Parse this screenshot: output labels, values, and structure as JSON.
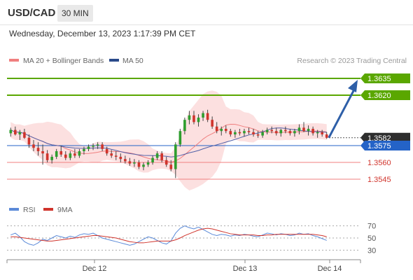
{
  "header": {
    "symbol": "USD/CAD",
    "timeframe": "30 MIN",
    "datetime": "Wednesday, December 13, 2023 1:17:39 PM CET"
  },
  "legend": {
    "ma20_label": "MA 20 + Bollinger Bands",
    "ma50_label": "MA 50",
    "credit": "Research © 2023 Trading Central",
    "rsi_label": "RSI",
    "rsi_ma_label": "9MA"
  },
  "colors": {
    "green_level": "#5aa700",
    "blue_level": "#2463c7",
    "red_level": "#f07f7f",
    "bullish_candle": "#2e9e2e",
    "bearish_candle": "#d0342c",
    "bollinger_band": "#fbd5d5",
    "ma20": "#f07f7f",
    "ma50": "#5060a8",
    "rsi_line": "#5b8ad8",
    "rsi_ma": "#d0342c",
    "forecast_arrow": "#2e5fa8",
    "last_price_tag": "#2e2e2e"
  },
  "chart_data": [
    {
      "type": "candlestick",
      "title": "",
      "x_ticks": [
        "Dec 12",
        "Dec 13",
        "Dec 14"
      ],
      "ylim": [
        1.3535,
        1.3645
      ],
      "levels": [
        {
          "value": 1.3635,
          "label": "1.3635",
          "kind": "resistance"
        },
        {
          "value": 1.362,
          "label": "1.3620",
          "kind": "resistance"
        },
        {
          "value": 1.3582,
          "label": "1.3582",
          "kind": "last_price"
        },
        {
          "value": 1.3575,
          "label": "1.3575",
          "kind": "pivot"
        },
        {
          "value": 1.356,
          "label": "1.3560",
          "kind": "support"
        },
        {
          "value": 1.3545,
          "label": "1.3545",
          "kind": "support"
        }
      ],
      "forecast": {
        "from": 1.3582,
        "to": 1.3635,
        "direction": "up"
      },
      "candles": [
        [
          1.3586,
          1.3591,
          1.3583,
          1.3589
        ],
        [
          1.3589,
          1.3592,
          1.3584,
          1.3585
        ],
        [
          1.3585,
          1.3589,
          1.358,
          1.3587
        ],
        [
          1.3587,
          1.359,
          1.3581,
          1.3582
        ],
        [
          1.3582,
          1.3585,
          1.3573,
          1.3576
        ],
        [
          1.3576,
          1.358,
          1.357,
          1.3573
        ],
        [
          1.3573,
          1.3578,
          1.3566,
          1.357
        ],
        [
          1.357,
          1.3576,
          1.3558,
          1.3568
        ],
        [
          1.3568,
          1.3571,
          1.356,
          1.3562
        ],
        [
          1.3562,
          1.3567,
          1.3559,
          1.3565
        ],
        [
          1.3565,
          1.3572,
          1.3563,
          1.357
        ],
        [
          1.357,
          1.3575,
          1.3565,
          1.3567
        ],
        [
          1.3567,
          1.357,
          1.3562,
          1.3564
        ],
        [
          1.3564,
          1.357,
          1.3562,
          1.3568
        ],
        [
          1.3568,
          1.3572,
          1.3564,
          1.3566
        ],
        [
          1.3566,
          1.3572,
          1.3564,
          1.357
        ],
        [
          1.357,
          1.3574,
          1.3567,
          1.3572
        ],
        [
          1.3572,
          1.3576,
          1.357,
          1.3574
        ],
        [
          1.3574,
          1.3577,
          1.3571,
          1.3575
        ],
        [
          1.3575,
          1.3578,
          1.3572,
          1.3576
        ],
        [
          1.3576,
          1.3578,
          1.357,
          1.3572
        ],
        [
          1.3572,
          1.3574,
          1.3566,
          1.3568
        ],
        [
          1.3568,
          1.3571,
          1.3564,
          1.3566
        ],
        [
          1.3566,
          1.357,
          1.3562,
          1.3565
        ],
        [
          1.3565,
          1.3568,
          1.356,
          1.3563
        ],
        [
          1.3563,
          1.3566,
          1.3559,
          1.3561
        ],
        [
          1.3561,
          1.3564,
          1.3557,
          1.3559
        ],
        [
          1.3559,
          1.3563,
          1.3556,
          1.356
        ],
        [
          1.356,
          1.3562,
          1.3554,
          1.3556
        ],
        [
          1.3556,
          1.356,
          1.3553,
          1.3558
        ],
        [
          1.3558,
          1.3562,
          1.3556,
          1.356
        ],
        [
          1.356,
          1.3566,
          1.3558,
          1.3564
        ],
        [
          1.3564,
          1.357,
          1.3562,
          1.3568
        ],
        [
          1.3568,
          1.357,
          1.356,
          1.3562
        ],
        [
          1.3562,
          1.3565,
          1.3556,
          1.3558
        ],
        [
          1.3558,
          1.3562,
          1.3552,
          1.3554
        ],
        [
          1.3554,
          1.3578,
          1.3546,
          1.3576
        ],
        [
          1.3576,
          1.359,
          1.3574,
          1.3588
        ],
        [
          1.3588,
          1.36,
          1.3585,
          1.3598
        ],
        [
          1.3598,
          1.3606,
          1.3594,
          1.3602
        ],
        [
          1.3602,
          1.3606,
          1.3594,
          1.3596
        ],
        [
          1.3596,
          1.3603,
          1.3592,
          1.36
        ],
        [
          1.36,
          1.3606,
          1.3597,
          1.3604
        ],
        [
          1.3604,
          1.3607,
          1.3596,
          1.3598
        ],
        [
          1.3598,
          1.3601,
          1.359,
          1.3592
        ],
        [
          1.3592,
          1.3596,
          1.3586,
          1.3588
        ],
        [
          1.3588,
          1.3592,
          1.3584,
          1.359
        ],
        [
          1.359,
          1.3593,
          1.3586,
          1.3588
        ],
        [
          1.3588,
          1.359,
          1.3583,
          1.3585
        ],
        [
          1.3585,
          1.3589,
          1.3582,
          1.3587
        ],
        [
          1.3587,
          1.359,
          1.3584,
          1.3586
        ],
        [
          1.3586,
          1.359,
          1.3583,
          1.3588
        ],
        [
          1.3588,
          1.3591,
          1.3585,
          1.3587
        ],
        [
          1.3587,
          1.359,
          1.3583,
          1.3585
        ],
        [
          1.3585,
          1.3588,
          1.3582,
          1.3584
        ],
        [
          1.3584,
          1.3589,
          1.3582,
          1.3587
        ],
        [
          1.3587,
          1.3591,
          1.3585,
          1.3589
        ],
        [
          1.3589,
          1.3592,
          1.3586,
          1.3588
        ],
        [
          1.3588,
          1.3591,
          1.3584,
          1.3586
        ],
        [
          1.3586,
          1.359,
          1.3583,
          1.3589
        ],
        [
          1.3589,
          1.3592,
          1.3586,
          1.3588
        ],
        [
          1.3588,
          1.359,
          1.3584,
          1.3586
        ],
        [
          1.3586,
          1.359,
          1.3583,
          1.3588
        ],
        [
          1.3588,
          1.3594,
          1.3585,
          1.3591
        ],
        [
          1.3591,
          1.3596,
          1.3587,
          1.3588
        ],
        [
          1.3588,
          1.3593,
          1.3584,
          1.359
        ],
        [
          1.359,
          1.3592,
          1.3584,
          1.3586
        ],
        [
          1.3586,
          1.3589,
          1.3582,
          1.3587
        ],
        [
          1.3587,
          1.3589,
          1.3583,
          1.3585
        ],
        [
          1.3585,
          1.3587,
          1.3581,
          1.3582
        ]
      ]
    },
    {
      "type": "line",
      "title": "",
      "series": [
        {
          "name": "RSI",
          "values": [
            55,
            58,
            52,
            44,
            40,
            38,
            42,
            48,
            46,
            50,
            54,
            52,
            50,
            53,
            51,
            55,
            57,
            56,
            58,
            54,
            50,
            48,
            46,
            44,
            42,
            40,
            38,
            40,
            44,
            48,
            52,
            50,
            46,
            42,
            40,
            45,
            58,
            66,
            70,
            67,
            65,
            68,
            64,
            60,
            56,
            54,
            56,
            55,
            53,
            55,
            54,
            56,
            55,
            53,
            52,
            55,
            58,
            57,
            55,
            57,
            56,
            54,
            55,
            58,
            56,
            57,
            54,
            52,
            49,
            46
          ]
        },
        {
          "name": "9MA",
          "values": [
            52,
            52,
            51,
            50,
            49,
            48,
            47,
            46,
            45,
            45,
            46,
            47,
            48,
            49,
            50,
            51,
            52,
            53,
            54,
            54,
            53,
            52,
            51,
            50,
            48,
            46,
            44,
            43,
            42,
            42,
            43,
            44,
            45,
            45,
            45,
            45,
            47,
            50,
            54,
            57,
            60,
            63,
            65,
            66,
            65,
            63,
            61,
            59,
            57,
            56,
            55,
            55,
            55,
            55,
            54,
            54,
            55,
            55,
            56,
            56,
            56,
            56,
            56,
            56,
            56,
            56,
            56,
            55,
            54,
            52
          ]
        }
      ],
      "ylim": [
        20,
        80
      ],
      "y_ticks": [
        70,
        50,
        30
      ]
    }
  ]
}
